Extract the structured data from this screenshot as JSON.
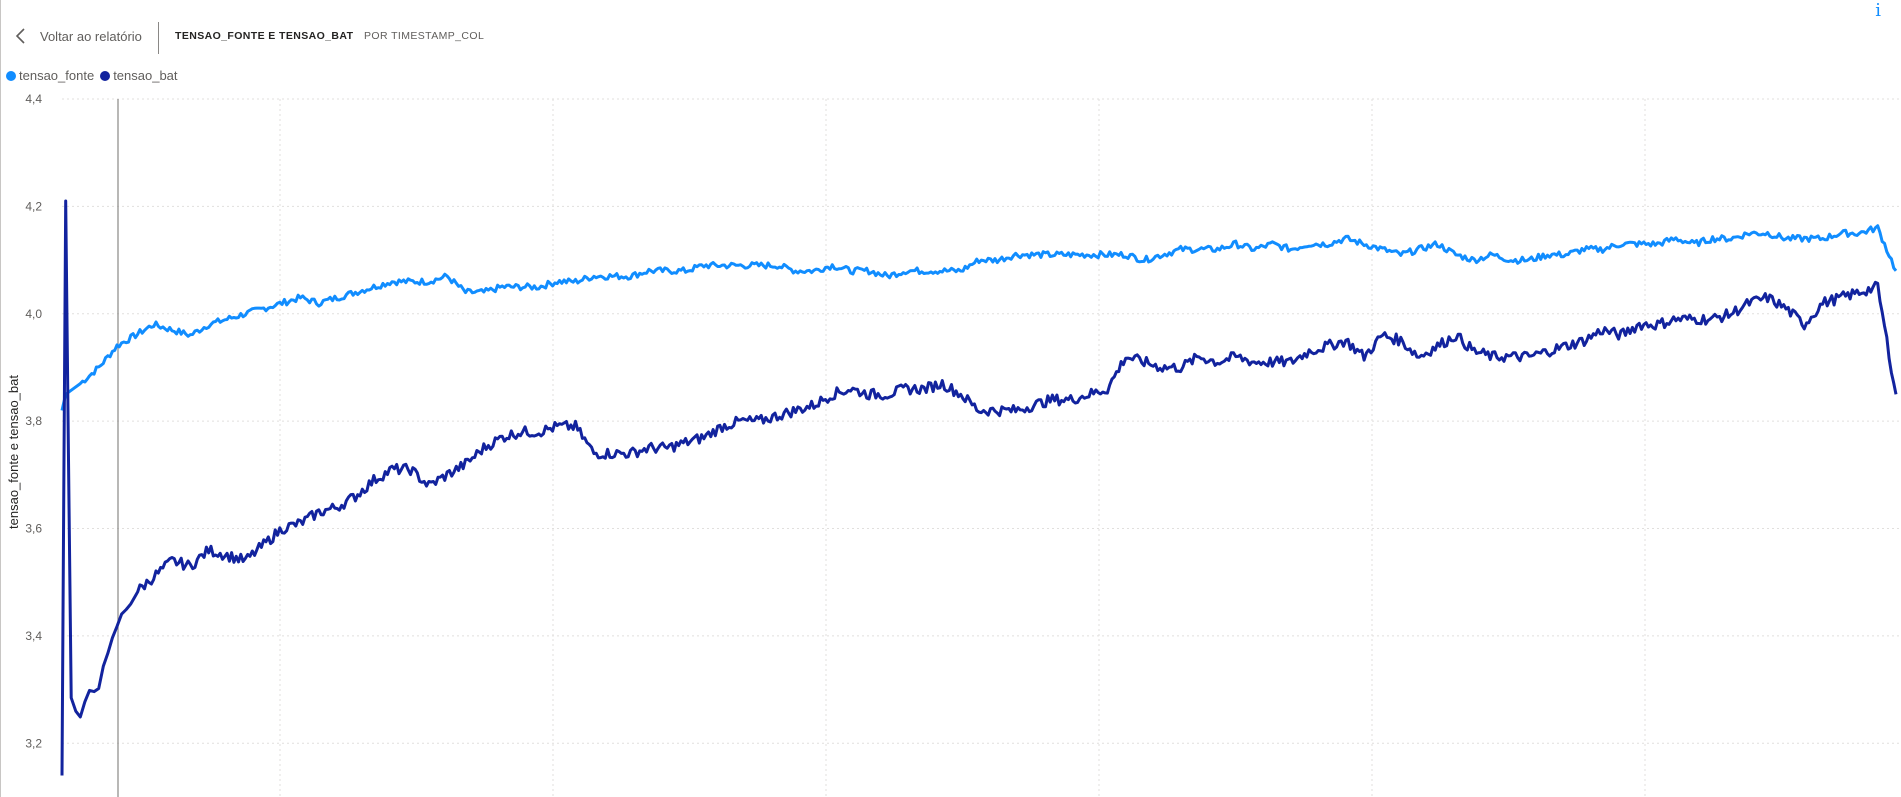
{
  "header": {
    "back_label": "Voltar ao relatório",
    "title": "TENSAO_FONTE E TENSAO_BAT",
    "subtitle": "POR TIMESTAMP_COL",
    "info_glyph": "i"
  },
  "chart_data": {
    "type": "line",
    "ylabel": "tensao_fonte e tensao_bat",
    "ylim": [
      3.1,
      4.4
    ],
    "yticks": [
      "3,2",
      "3,4",
      "3,6",
      "3,8",
      "4,0",
      "4,2",
      "4,4"
    ],
    "ytick_values": [
      3.2,
      3.4,
      3.6,
      3.8,
      4.0,
      4.2,
      4.4
    ],
    "xlim": [
      0,
      100
    ],
    "grid": true,
    "legend_position": "top-left",
    "series": [
      {
        "name": "tensao_fonte",
        "color": "#118dff",
        "x": [
          0,
          0.2,
          1,
          2,
          3,
          4,
          5,
          6,
          7,
          8,
          9,
          10,
          11,
          12,
          13,
          14,
          15,
          16,
          17,
          18,
          19,
          20,
          21,
          22,
          23,
          24,
          25,
          26,
          27,
          28,
          29,
          30,
          31,
          32,
          33,
          34,
          35,
          36,
          37,
          38,
          39,
          40,
          41,
          42,
          43,
          44,
          45,
          46,
          47,
          48,
          49,
          50,
          51,
          52,
          53,
          54,
          55,
          56,
          57,
          58,
          59,
          60,
          61,
          62,
          63,
          64,
          65,
          66,
          67,
          68,
          69,
          70,
          71,
          72,
          73,
          74,
          75,
          76,
          77,
          78,
          79,
          80,
          81,
          82,
          83,
          84,
          85,
          86,
          87,
          88,
          89,
          90,
          91,
          92,
          93,
          94,
          95,
          96,
          97,
          98,
          99,
          100
        ],
        "values": [
          3.82,
          3.85,
          3.87,
          3.9,
          3.94,
          3.96,
          3.98,
          3.97,
          3.96,
          3.98,
          3.99,
          4.0,
          4.01,
          4.02,
          4.03,
          4.02,
          4.03,
          4.04,
          4.05,
          4.06,
          4.06,
          4.06,
          4.07,
          4.04,
          4.04,
          4.05,
          4.05,
          4.05,
          4.06,
          4.06,
          4.07,
          4.07,
          4.07,
          4.08,
          4.08,
          4.08,
          4.09,
          4.09,
          4.09,
          4.09,
          4.09,
          4.08,
          4.08,
          4.09,
          4.08,
          4.08,
          4.07,
          4.08,
          4.08,
          4.08,
          4.08,
          4.1,
          4.1,
          4.11,
          4.11,
          4.11,
          4.11,
          4.11,
          4.11,
          4.11,
          4.1,
          4.11,
          4.12,
          4.12,
          4.12,
          4.13,
          4.12,
          4.13,
          4.12,
          4.13,
          4.13,
          4.14,
          4.13,
          4.12,
          4.11,
          4.12,
          4.13,
          4.11,
          4.1,
          4.11,
          4.1,
          4.1,
          4.11,
          4.11,
          4.12,
          4.12,
          4.13,
          4.13,
          4.13,
          4.14,
          4.13,
          4.14,
          4.14,
          4.15,
          4.15,
          4.14,
          4.14,
          4.14,
          4.15,
          4.15,
          4.16,
          4.08
        ]
      },
      {
        "name": "tensao_bat",
        "color": "#12239e",
        "x": [
          0,
          0.2,
          0.5,
          1,
          1.5,
          2,
          2.5,
          3,
          3.5,
          4,
          5,
          6,
          7,
          8,
          9,
          10,
          11,
          12,
          13,
          14,
          15,
          16,
          17,
          18,
          19,
          20,
          21,
          22,
          23,
          24,
          25,
          26,
          27,
          28,
          29,
          30,
          31,
          32,
          33,
          34,
          35,
          36,
          37,
          38,
          39,
          40,
          41,
          42,
          43,
          44,
          45,
          46,
          47,
          48,
          49,
          50,
          51,
          52,
          53,
          54,
          55,
          56,
          57,
          58,
          59,
          60,
          61,
          62,
          63,
          64,
          65,
          66,
          67,
          68,
          69,
          70,
          71,
          72,
          73,
          74,
          75,
          76,
          77,
          78,
          79,
          80,
          81,
          82,
          83,
          84,
          85,
          86,
          87,
          88,
          89,
          90,
          91,
          92,
          93,
          94,
          95,
          96,
          97,
          98,
          99,
          100
        ],
        "values": [
          3.14,
          4.21,
          3.28,
          3.24,
          3.3,
          3.31,
          3.36,
          3.42,
          3.45,
          3.48,
          3.51,
          3.54,
          3.53,
          3.56,
          3.55,
          3.54,
          3.57,
          3.6,
          3.61,
          3.63,
          3.64,
          3.66,
          3.69,
          3.71,
          3.71,
          3.68,
          3.7,
          3.72,
          3.75,
          3.77,
          3.78,
          3.78,
          3.79,
          3.79,
          3.74,
          3.74,
          3.74,
          3.75,
          3.75,
          3.76,
          3.77,
          3.79,
          3.8,
          3.8,
          3.81,
          3.82,
          3.83,
          3.85,
          3.86,
          3.85,
          3.85,
          3.86,
          3.86,
          3.87,
          3.85,
          3.82,
          3.82,
          3.82,
          3.83,
          3.84,
          3.84,
          3.85,
          3.86,
          3.92,
          3.91,
          3.9,
          3.9,
          3.92,
          3.91,
          3.92,
          3.91,
          3.91,
          3.91,
          3.93,
          3.94,
          3.95,
          3.92,
          3.96,
          3.95,
          3.92,
          3.94,
          3.96,
          3.93,
          3.92,
          3.92,
          3.92,
          3.93,
          3.94,
          3.95,
          3.97,
          3.96,
          3.98,
          3.98,
          3.99,
          3.99,
          3.99,
          4.0,
          4.02,
          4.03,
          4.01,
          3.98,
          4.02,
          4.03,
          4.04,
          4.05,
          3.85
        ]
      }
    ]
  }
}
